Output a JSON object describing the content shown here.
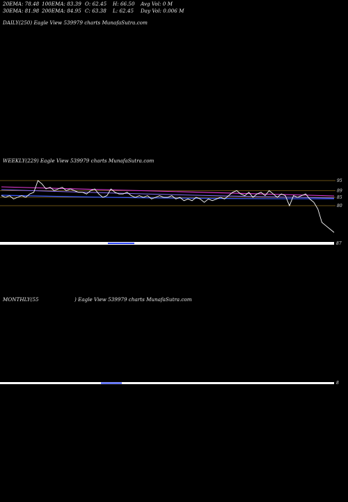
{
  "header": {
    "row1": [
      "20EMA: 78.48",
      "100EMA: 83.39",
      "O: 62.45",
      "H: 66.50",
      "Avg Vol: 0  M"
    ],
    "row2": [
      "30EMA: 81.98",
      "200EMA: 84.95",
      "C: 63.38",
      "L: 62.45",
      "Day Vol: 0.006  M"
    ]
  },
  "panels": {
    "daily_label": "DAILY(250) Eagle   View  539979 charts MunafaSutra.com",
    "weekly_label": "WEEKLY(229) Eagle   View  539979 charts MunafaSutra.com",
    "monthly_left": "MONTHLY(55",
    "monthly_right": ") Eagle   View  539979 charts MunafaSutra.com"
  },
  "chart_data": [
    {
      "panel": "weekly",
      "type": "line",
      "y_tick_labels": [
        "95",
        "89",
        "85",
        "80"
      ],
      "volume_tick_label": "87",
      "series": [
        {
          "values": [
            86,
            85,
            86,
            84,
            85,
            86,
            85,
            87,
            88,
            95,
            93,
            90,
            91,
            89,
            90,
            91,
            89,
            90,
            89,
            88,
            88,
            87,
            89,
            90,
            87,
            85,
            86,
            90,
            88,
            87,
            87,
            88,
            86,
            85,
            86,
            85,
            86,
            84,
            85,
            86,
            85,
            85,
            86,
            84,
            85,
            83,
            84,
            83,
            85,
            84,
            82,
            84,
            83,
            84,
            85,
            84,
            86,
            88,
            89,
            87,
            86,
            88,
            85,
            87,
            88,
            86,
            89,
            87,
            85,
            87,
            86,
            80,
            86,
            85,
            86,
            87,
            84,
            82,
            78,
            70,
            68,
            66,
            64
          ]
        }
      ],
      "indicator_colors": {
        "price": "#ffffff",
        "ema_short": "#3b5bff",
        "ema_mid": "#e23ad6",
        "ema_long": "#8a6fff",
        "volume": "#ffffff",
        "volume_avg": "#2f47ff",
        "guide_line": "#8b6a1a"
      }
    },
    {
      "panel": "monthly",
      "type": "line",
      "volume_tick_label": "8",
      "indicator_colors": {
        "volume": "#ffffff",
        "volume_avg": "#2f47ff"
      }
    }
  ]
}
